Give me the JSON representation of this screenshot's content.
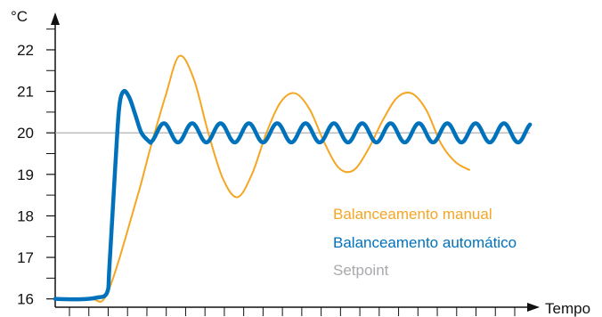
{
  "chart_data": {
    "type": "line",
    "y_unit_label": "°C",
    "x_axis_label": "Tempo",
    "yticks": [
      16,
      17,
      18,
      19,
      20,
      21,
      22
    ],
    "ylim": [
      15.8,
      22.9
    ],
    "xlim": [
      0,
      100
    ],
    "x_tick_count": 24,
    "grid": false,
    "legend_position": "bottom-right",
    "series": [
      {
        "name": "Balanceamento manual",
        "color": "#F5A623",
        "x": [
          0,
          7.2,
          10.8,
          16.8,
          19.8,
          22.8,
          25.6,
          28.6,
          31.6,
          34.6,
          37.6,
          40.6,
          43.6,
          46.6,
          49.6,
          52.6,
          55.6,
          58.6,
          61.6,
          64.6,
          67.6,
          70.6,
          73.6,
          76.6,
          79.6,
          82.6,
          85.6
        ],
        "values": [
          16.0,
          16.0,
          16.15,
          18.4,
          19.7,
          20.9,
          21.85,
          21.3,
          20.0,
          18.9,
          18.45,
          19.0,
          20.0,
          20.75,
          20.95,
          20.55,
          19.75,
          19.15,
          19.1,
          19.6,
          20.3,
          20.85,
          20.95,
          20.55,
          19.75,
          19.3,
          19.1
        ]
      },
      {
        "name": "Balanceamento automático",
        "color": "#0072BC",
        "x": [
          0,
          5,
          8.5,
          10.7,
          11.2,
          12.4,
          13.2,
          14.1,
          15.3,
          16.5,
          17.8,
          19.5
        ],
        "values": [
          16.0,
          15.99,
          16.03,
          16.15,
          16.8,
          19.2,
          20.6,
          21.0,
          20.85,
          20.45,
          20.0,
          19.78
        ],
        "oscillation": {
          "from_x": 19.5,
          "to_x": 98,
          "period": 5.85,
          "center": 20.0,
          "amplitude": 0.23
        }
      },
      {
        "name": "Setpoint",
        "color": "#A7A9AC",
        "x": [
          0,
          98
        ],
        "values": [
          20,
          20
        ]
      }
    ]
  }
}
